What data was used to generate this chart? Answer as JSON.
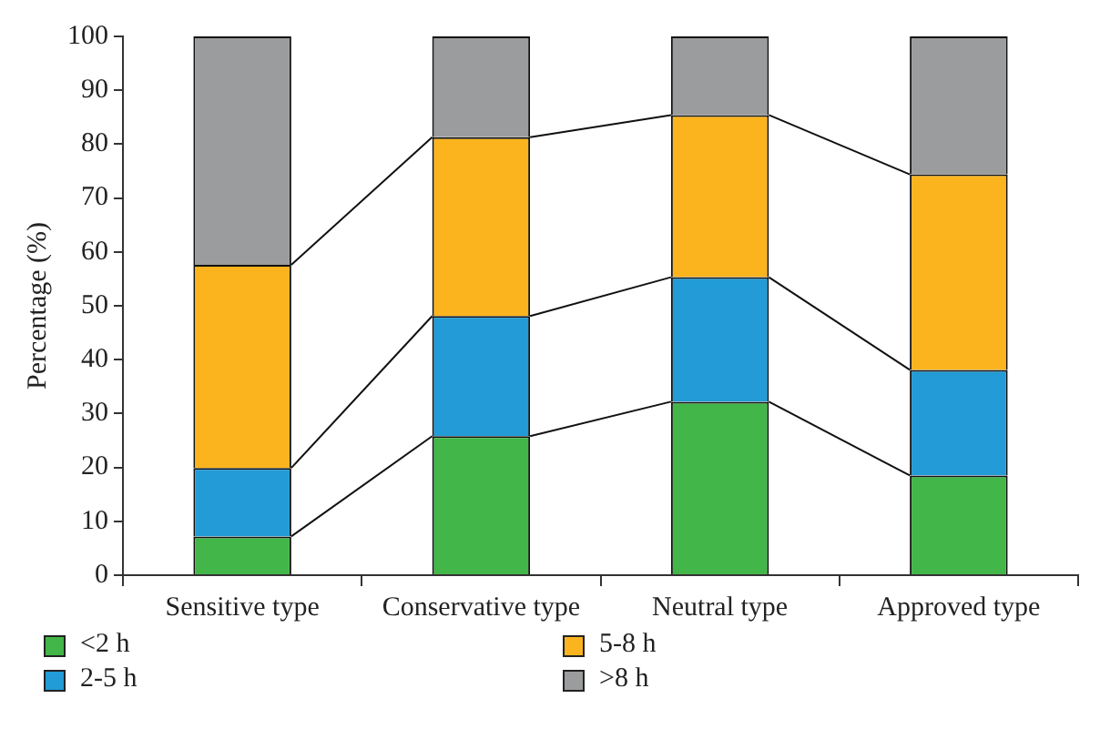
{
  "chart_data": {
    "type": "bar",
    "stacked": true,
    "ylabel": "Percentage (%)",
    "categories": [
      "Sensitive type",
      "Conservative type",
      "Neutral type",
      "Approved type"
    ],
    "series": [
      {
        "name": "<2 h",
        "color": "#43b649",
        "values": [
          7.2,
          25.8,
          32.2,
          18.5
        ]
      },
      {
        "name": "2-5 h",
        "color": "#229bd6",
        "values": [
          12.7,
          22.3,
          23.1,
          19.6
        ]
      },
      {
        "name": "5-8 h",
        "color": "#fbb41d",
        "values": [
          37.7,
          33.2,
          30.1,
          36.3
        ]
      },
      {
        "name": ">8 h",
        "color": "#9a9c9d",
        "values": [
          42.4,
          18.7,
          14.6,
          25.6
        ]
      }
    ],
    "ylim": [
      0,
      100
    ],
    "yticks": [
      0,
      10,
      20,
      30,
      40,
      50,
      60,
      70,
      80,
      90,
      100
    ],
    "grid": false,
    "legend": "bottom"
  }
}
